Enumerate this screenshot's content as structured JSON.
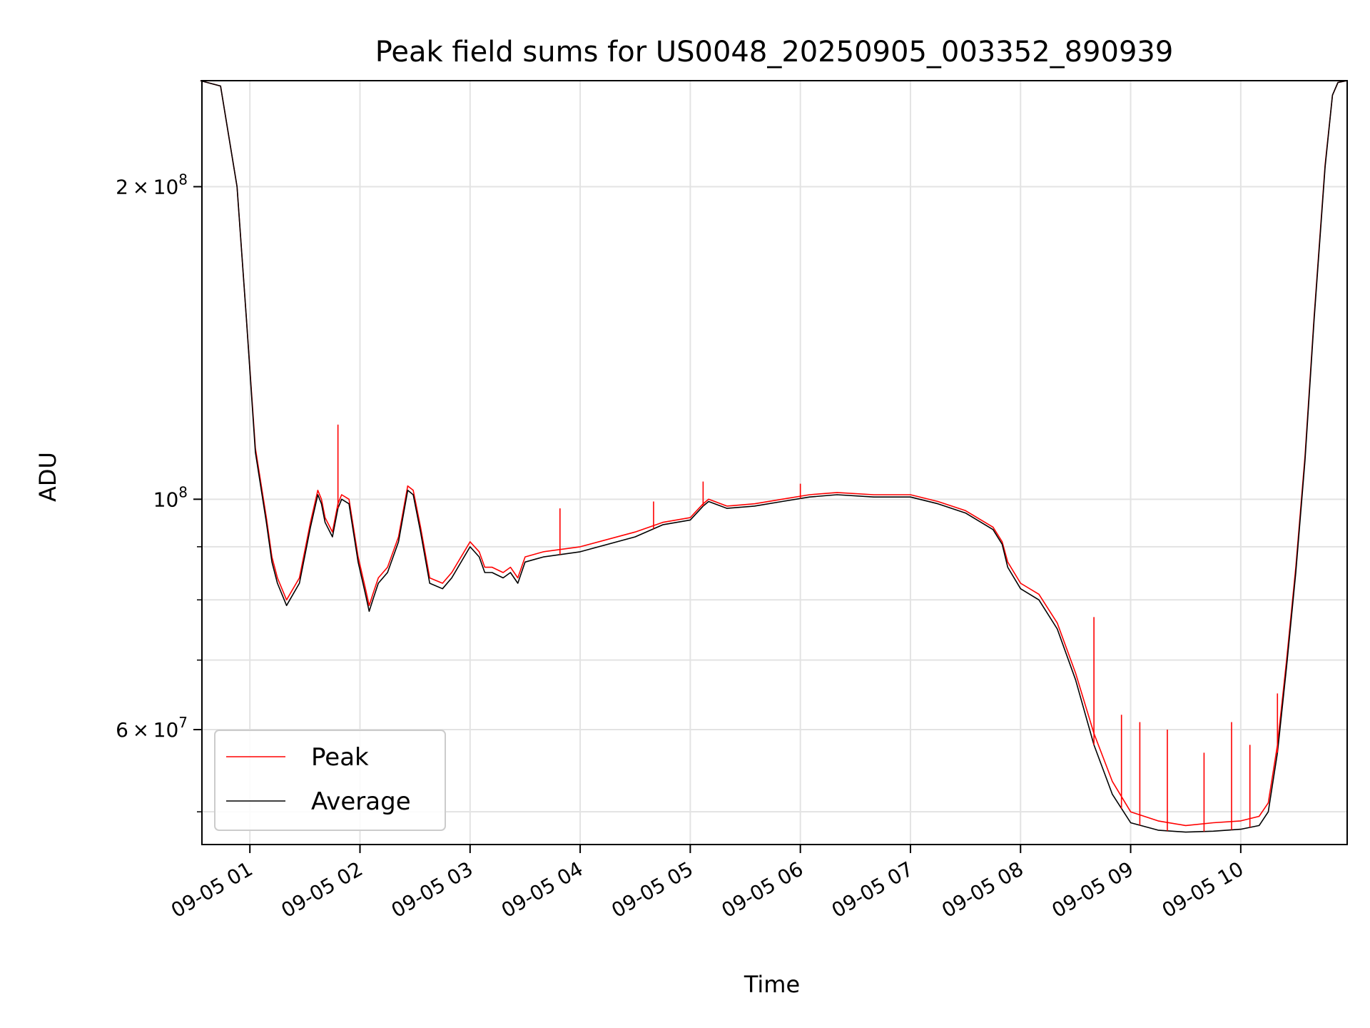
{
  "chart_data": {
    "type": "line",
    "title": "Peak field sums for US0048_20250905_003352_890939",
    "xlabel": "Time",
    "ylabel": "ADU",
    "x_axis": "time",
    "xlim": [
      "2025-09-05T00:33:52",
      "2025-09-05T10:58:00"
    ],
    "y_scale": "log",
    "ylim": [
      46500000,
      253000000
    ],
    "grid": true,
    "legend_position": "lower-left",
    "x_ticks": [
      {
        "value": "2025-09-05T01:00",
        "label": "09-05 01"
      },
      {
        "value": "2025-09-05T02:00",
        "label": "09-05 02"
      },
      {
        "value": "2025-09-05T03:00",
        "label": "09-05 03"
      },
      {
        "value": "2025-09-05T04:00",
        "label": "09-05 04"
      },
      {
        "value": "2025-09-05T05:00",
        "label": "09-05 05"
      },
      {
        "value": "2025-09-05T06:00",
        "label": "09-05 06"
      },
      {
        "value": "2025-09-05T07:00",
        "label": "09-05 07"
      },
      {
        "value": "2025-09-05T08:00",
        "label": "09-05 08"
      },
      {
        "value": "2025-09-05T09:00",
        "label": "09-05 09"
      },
      {
        "value": "2025-09-05T10:00",
        "label": "09-05 10"
      }
    ],
    "y_ticks_major": [
      {
        "value": 100000000,
        "base": "10",
        "exp": "8"
      },
      {
        "value": 200000000,
        "mant": "2",
        "base": "10",
        "exp": "8"
      },
      {
        "value": 60000000,
        "mant": "6",
        "base": "10",
        "exp": "7"
      }
    ],
    "y_ticks_minor": [
      50000000,
      70000000,
      80000000,
      90000000
    ],
    "series": [
      {
        "name": "Peak",
        "color": "#ff0000",
        "x": [
          "2025-09-05T00:33",
          "2025-09-05T00:44",
          "2025-09-05T00:53",
          "2025-09-05T00:58",
          "2025-09-05T01:03",
          "2025-09-05T01:09",
          "2025-09-05T01:12",
          "2025-09-05T01:15",
          "2025-09-05T01:20",
          "2025-09-05T01:27",
          "2025-09-05T01:33",
          "2025-09-05T01:37",
          "2025-09-05T01:39",
          "2025-09-05T01:41",
          "2025-09-05T01:45",
          "2025-09-05T01:48",
          "2025-09-05T01:50",
          "2025-09-05T01:54",
          "2025-09-05T01:59",
          "2025-09-05T02:03",
          "2025-09-05T02:05",
          "2025-09-05T02:07",
          "2025-09-05T02:10",
          "2025-09-05T02:15",
          "2025-09-05T02:21",
          "2025-09-05T02:26",
          "2025-09-05T02:29",
          "2025-09-05T02:33",
          "2025-09-05T02:38",
          "2025-09-05T02:45",
          "2025-09-05T02:50",
          "2025-09-05T03:00",
          "2025-09-05T03:05",
          "2025-09-05T03:08",
          "2025-09-05T03:12",
          "2025-09-05T03:18",
          "2025-09-05T03:22",
          "2025-09-05T03:26",
          "2025-09-05T03:30",
          "2025-09-05T03:35",
          "2025-09-05T03:40",
          "2025-09-05T04:00",
          "2025-09-05T04:30",
          "2025-09-05T04:45",
          "2025-09-05T05:00",
          "2025-09-05T05:07",
          "2025-09-05T05:10",
          "2025-09-05T05:20",
          "2025-09-05T05:35",
          "2025-09-05T05:50",
          "2025-09-05T06:05",
          "2025-09-05T06:20",
          "2025-09-05T06:40",
          "2025-09-05T07:00",
          "2025-09-05T07:15",
          "2025-09-05T07:30",
          "2025-09-05T07:45",
          "2025-09-05T07:50",
          "2025-09-05T07:53",
          "2025-09-05T08:00",
          "2025-09-05T08:10",
          "2025-09-05T08:20",
          "2025-09-05T08:30",
          "2025-09-05T08:40",
          "2025-09-05T08:50",
          "2025-09-05T09:00",
          "2025-09-05T09:15",
          "2025-09-05T09:30",
          "2025-09-05T09:45",
          "2025-09-05T10:00",
          "2025-09-05T10:10",
          "2025-09-05T10:15",
          "2025-09-05T10:20",
          "2025-09-05T10:25",
          "2025-09-05T10:30",
          "2025-09-05T10:35",
          "2025-09-05T10:40",
          "2025-09-05T10:46",
          "2025-09-05T10:50",
          "2025-09-05T10:53",
          "2025-09-05T10:58"
        ],
        "values": [
          253000000,
          250000000,
          200000000,
          150000000,
          112000000,
          96000000,
          88000000,
          84000000,
          80000000,
          84000000,
          95000000,
          102000000,
          100000000,
          96000000,
          93000000,
          99000000,
          101000000,
          100000000,
          88000000,
          82000000,
          79000000,
          81000000,
          84000000,
          86000000,
          92000000,
          103000000,
          102000000,
          94000000,
          84000000,
          83000000,
          85000000,
          91000000,
          89000000,
          86000000,
          86000000,
          85000000,
          86000000,
          84000000,
          88000000,
          88500000,
          89000000,
          90000000,
          93000000,
          95000000,
          96000000,
          99000000,
          100000000,
          98500000,
          99000000,
          100000000,
          101000000,
          101500000,
          101000000,
          101000000,
          99500000,
          97500000,
          94000000,
          91000000,
          87000000,
          83000000,
          81000000,
          76000000,
          68000000,
          59500000,
          53500000,
          50000000,
          49000000,
          48500000,
          48800000,
          49000000,
          49500000,
          51000000,
          58000000,
          70000000,
          86000000,
          110000000,
          150000000,
          210000000,
          245000000,
          252000000,
          253000000
        ]
      },
      {
        "name": "Average",
        "color": "#000000",
        "x": [
          "2025-09-05T00:33",
          "2025-09-05T00:44",
          "2025-09-05T00:53",
          "2025-09-05T00:58",
          "2025-09-05T01:03",
          "2025-09-05T01:09",
          "2025-09-05T01:12",
          "2025-09-05T01:15",
          "2025-09-05T01:20",
          "2025-09-05T01:27",
          "2025-09-05T01:33",
          "2025-09-05T01:37",
          "2025-09-05T01:39",
          "2025-09-05T01:41",
          "2025-09-05T01:45",
          "2025-09-05T01:48",
          "2025-09-05T01:50",
          "2025-09-05T01:54",
          "2025-09-05T01:59",
          "2025-09-05T02:03",
          "2025-09-05T02:05",
          "2025-09-05T02:07",
          "2025-09-05T02:10",
          "2025-09-05T02:15",
          "2025-09-05T02:21",
          "2025-09-05T02:26",
          "2025-09-05T02:29",
          "2025-09-05T02:33",
          "2025-09-05T02:38",
          "2025-09-05T02:45",
          "2025-09-05T02:50",
          "2025-09-05T03:00",
          "2025-09-05T03:05",
          "2025-09-05T03:08",
          "2025-09-05T03:12",
          "2025-09-05T03:18",
          "2025-09-05T03:22",
          "2025-09-05T03:26",
          "2025-09-05T03:30",
          "2025-09-05T03:35",
          "2025-09-05T03:40",
          "2025-09-05T04:00",
          "2025-09-05T04:30",
          "2025-09-05T04:45",
          "2025-09-05T05:00",
          "2025-09-05T05:07",
          "2025-09-05T05:10",
          "2025-09-05T05:20",
          "2025-09-05T05:35",
          "2025-09-05T05:50",
          "2025-09-05T06:05",
          "2025-09-05T06:20",
          "2025-09-05T06:40",
          "2025-09-05T07:00",
          "2025-09-05T07:15",
          "2025-09-05T07:30",
          "2025-09-05T07:45",
          "2025-09-05T07:50",
          "2025-09-05T07:53",
          "2025-09-05T08:00",
          "2025-09-05T08:10",
          "2025-09-05T08:20",
          "2025-09-05T08:30",
          "2025-09-05T08:40",
          "2025-09-05T08:50",
          "2025-09-05T09:00",
          "2025-09-05T09:15",
          "2025-09-05T09:30",
          "2025-09-05T09:45",
          "2025-09-05T10:00",
          "2025-09-05T10:10",
          "2025-09-05T10:15",
          "2025-09-05T10:20",
          "2025-09-05T10:25",
          "2025-09-05T10:30",
          "2025-09-05T10:35",
          "2025-09-05T10:40",
          "2025-09-05T10:46",
          "2025-09-05T10:50",
          "2025-09-05T10:53",
          "2025-09-05T10:58"
        ],
        "values": [
          253000000,
          250000000,
          200000000,
          150000000,
          111000000,
          95000000,
          87000000,
          83000000,
          79000000,
          83000000,
          94000000,
          101000000,
          99000000,
          95000000,
          92000000,
          98000000,
          100000000,
          99000000,
          87000000,
          81000000,
          78000000,
          80000000,
          83000000,
          85000000,
          91000000,
          102000000,
          101000000,
          93000000,
          83000000,
          82000000,
          84000000,
          90000000,
          88000000,
          85000000,
          85000000,
          84000000,
          85000000,
          83000000,
          87000000,
          87500000,
          88000000,
          89000000,
          92000000,
          94500000,
          95500000,
          98500000,
          99500000,
          98000000,
          98500000,
          99500000,
          100500000,
          101000000,
          100500000,
          100500000,
          99000000,
          97000000,
          93500000,
          90500000,
          86000000,
          82000000,
          80000000,
          75000000,
          67000000,
          58000000,
          52000000,
          48800000,
          48000000,
          47800000,
          47900000,
          48100000,
          48500000,
          50000000,
          57000000,
          69000000,
          85000000,
          109000000,
          149000000,
          209000000,
          245000000,
          252000000,
          253000000
        ]
      }
    ],
    "peak_spikes": [
      {
        "x": "2025-09-05T01:48",
        "value": 118000000
      },
      {
        "x": "2025-09-05T03:49",
        "value": 98000000
      },
      {
        "x": "2025-09-05T04:40",
        "value": 99500000
      },
      {
        "x": "2025-09-05T05:07",
        "value": 104000000
      },
      {
        "x": "2025-09-05T06:00",
        "value": 103500000
      },
      {
        "x": "2025-09-05T08:40",
        "value": 77000000
      },
      {
        "x": "2025-09-05T08:55",
        "value": 62000000
      },
      {
        "x": "2025-09-05T09:05",
        "value": 61000000
      },
      {
        "x": "2025-09-05T09:20",
        "value": 60000000
      },
      {
        "x": "2025-09-05T09:40",
        "value": 57000000
      },
      {
        "x": "2025-09-05T09:55",
        "value": 61000000
      },
      {
        "x": "2025-09-05T10:05",
        "value": 58000000
      },
      {
        "x": "2025-09-05T10:20",
        "value": 65000000
      }
    ]
  }
}
